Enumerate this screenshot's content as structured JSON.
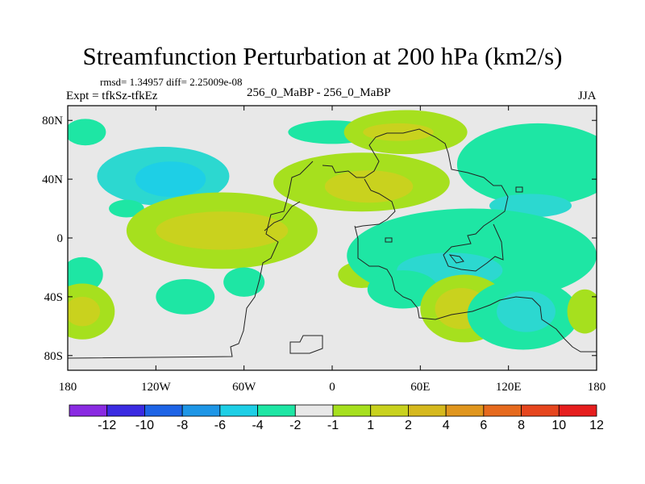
{
  "chart_data": {
    "type": "heatmap",
    "title": "Streamfunction Perturbation at 200 hPa (km2/s)",
    "stats_text": "rmsd= 1.34957 diff= 2.25009e-08",
    "experiment": "Expt = tfkSz-tfkEz",
    "difference": "256_0_MaBP - 256_0_MaBP",
    "season": "JJA",
    "x_range": [
      -180,
      180
    ],
    "y_range": [
      -90,
      90
    ],
    "x_ticks": [
      {
        "value": -180,
        "label": "180"
      },
      {
        "value": -120,
        "label": "120W"
      },
      {
        "value": -60,
        "label": "60W"
      },
      {
        "value": 0,
        "label": "0"
      },
      {
        "value": 60,
        "label": "60E"
      },
      {
        "value": 120,
        "label": "120E"
      },
      {
        "value": 180,
        "label": "180"
      }
    ],
    "y_ticks": [
      {
        "value": 80,
        "label": "80N"
      },
      {
        "value": 40,
        "label": "40N"
      },
      {
        "value": 0,
        "label": "0"
      },
      {
        "value": -40,
        "label": "40S"
      },
      {
        "value": -80,
        "label": "80S"
      }
    ],
    "colorbar": {
      "colors": [
        "#8A2BE2",
        "#3B2BE2",
        "#1E64E6",
        "#1E96E6",
        "#1ECFE6",
        "#1EE6A4",
        "#E8E8E8",
        "#A6E01E",
        "#C9D21E",
        "#D6B91E",
        "#E0961E",
        "#E66A1E",
        "#E6461E",
        "#E61E1E"
      ],
      "labels": [
        "-12",
        "-10",
        "-8",
        "-6",
        "-4",
        "-2",
        "-1",
        "1",
        "2",
        "4",
        "6",
        "8",
        "10",
        "12"
      ]
    },
    "fields": [
      {
        "lon": -168,
        "lat": 72,
        "rx": 14,
        "ry": 9,
        "value": -1.5
      },
      {
        "lon": -115,
        "lat": 42,
        "rx": 45,
        "ry": 20,
        "value": -2.2
      },
      {
        "lon": -110,
        "lat": 40,
        "rx": 24,
        "ry": 12,
        "value": -3.5
      },
      {
        "lon": -140,
        "lat": 20,
        "rx": 12,
        "ry": 6,
        "value": -1.5
      },
      {
        "lon": 0,
        "lat": 72,
        "rx": 30,
        "ry": 8,
        "value": -1.5
      },
      {
        "lon": 50,
        "lat": 72,
        "rx": 42,
        "ry": 15,
        "value": 1.5
      },
      {
        "lon": 45,
        "lat": 72,
        "rx": 24,
        "ry": 6,
        "value": 2.5
      },
      {
        "lon": 20,
        "lat": 38,
        "rx": 60,
        "ry": 20,
        "value": 1.5
      },
      {
        "lon": 25,
        "lat": 35,
        "rx": 30,
        "ry": 11,
        "value": 2.5
      },
      {
        "lon": 140,
        "lat": 50,
        "rx": 55,
        "ry": 28,
        "value": -1.5
      },
      {
        "lon": 135,
        "lat": 22,
        "rx": 28,
        "ry": 8,
        "value": -2.2
      },
      {
        "lon": -75,
        "lat": 5,
        "rx": 65,
        "ry": 26,
        "value": 1.5
      },
      {
        "lon": -75,
        "lat": 5,
        "rx": 45,
        "ry": 13,
        "value": 2.5
      },
      {
        "lon": -170,
        "lat": -25,
        "rx": 14,
        "ry": 12,
        "value": -1.5
      },
      {
        "lon": -170,
        "lat": -50,
        "rx": 22,
        "ry": 19,
        "value": 1.5
      },
      {
        "lon": -170,
        "lat": -50,
        "rx": 12,
        "ry": 10,
        "value": 2.5
      },
      {
        "lon": -100,
        "lat": -40,
        "rx": 20,
        "ry": 12,
        "value": -1.5
      },
      {
        "lon": -60,
        "lat": -30,
        "rx": 14,
        "ry": 10,
        "value": -1.5
      },
      {
        "lon": 20,
        "lat": -25,
        "rx": 16,
        "ry": 9,
        "value": 1.5
      },
      {
        "lon": 95,
        "lat": -12,
        "rx": 85,
        "ry": 32,
        "value": -1.5
      },
      {
        "lon": 80,
        "lat": -22,
        "rx": 36,
        "ry": 12,
        "value": -2.2
      },
      {
        "lon": 48,
        "lat": -35,
        "rx": 24,
        "ry": 13,
        "value": -1.5
      },
      {
        "lon": 90,
        "lat": -48,
        "rx": 30,
        "ry": 23,
        "value": 1.5
      },
      {
        "lon": 88,
        "lat": -48,
        "rx": 18,
        "ry": 14,
        "value": 2.5
      },
      {
        "lon": 130,
        "lat": -52,
        "rx": 38,
        "ry": 24,
        "value": -1.5
      },
      {
        "lon": 132,
        "lat": -50,
        "rx": 20,
        "ry": 14,
        "value": -2.2
      },
      {
        "lon": 172,
        "lat": -50,
        "rx": 12,
        "ry": 15,
        "value": 1.5
      }
    ],
    "grid": false
  }
}
